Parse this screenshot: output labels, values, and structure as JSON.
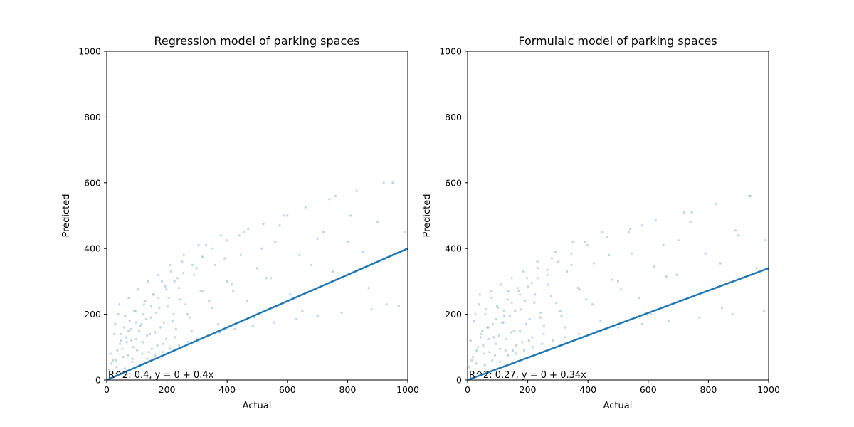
{
  "chart_data": [
    {
      "type": "scatter",
      "title": "Regression model of parking spaces",
      "xlabel": "Actual",
      "ylabel": "Predicted",
      "xlim": [
        0,
        1000
      ],
      "ylim": [
        0,
        1000
      ],
      "xticks": [
        "0",
        "200",
        "400",
        "600",
        "800",
        "1000"
      ],
      "yticks": [
        "0",
        "200",
        "400",
        "600",
        "800",
        "1000"
      ],
      "annotation": "R^2: 0.4, y = 0 + 0.4x",
      "point_color": "#1f77b4",
      "line_color": "#1f77b4",
      "fit_line": {
        "intercept": 0,
        "slope": 0.4
      },
      "series": [
        {
          "x": [
            12,
            25,
            31,
            38,
            44,
            52,
            58,
            63,
            70,
            76,
            82,
            88,
            95,
            101,
            108,
            115,
            121,
            128,
            134,
            140,
            147,
            153,
            160,
            168,
            175,
            183,
            190,
            198,
            206,
            214,
            222,
            230,
            240,
            250,
            262,
            275,
            290,
            305,
            320,
            340,
            360,
            380,
            400,
            420,
            445,
            470,
            500,
            530,
            560,
            600,
            640,
            680,
            720,
            760,
            800,
            850,
            900,
            950,
            990,
            15,
            28,
            35,
            42,
            48,
            55,
            61,
            67,
            73,
            79,
            85,
            92,
            98,
            104,
            111,
            118,
            124,
            131,
            137,
            144,
            150,
            157,
            164,
            171,
            179,
            186,
            194,
            202,
            210,
            218,
            226,
            235,
            245,
            256,
            268,
            282,
            298,
            312,
            330,
            350,
            370,
            392,
            415,
            440,
            465,
            490,
            515,
            545,
            575,
            610,
            650,
            700,
            750,
            810,
            870,
            930,
            8,
            20,
            33,
            47,
            60,
            72,
            85,
            97,
            110,
            122,
            135,
            148,
            160,
            172,
            185,
            198,
            210,
            225,
            240,
            255,
            270,
            285,
            300,
            318,
            335,
            352,
            375,
            398,
            425,
            455,
            485,
            520,
            555,
            590,
            630,
            660,
            700,
            740,
            780,
            830,
            880,
            920,
            970
          ],
          "y": [
            80,
            140,
            60,
            200,
            110,
            95,
            160,
            130,
            75,
            180,
            120,
            100,
            210,
            90,
            150,
            170,
            115,
            240,
            135,
            85,
            190,
            260,
            145,
            105,
            220,
            300,
            175,
            125,
            250,
            330,
            200,
            155,
            280,
            360,
            230,
            190,
            320,
            410,
            270,
            240,
            350,
            440,
            300,
            270,
            380,
            460,
            340,
            310,
            420,
            500,
            380,
            350,
            450,
            560,
            420,
            390,
            480,
            600,
            450,
            50,
            170,
            90,
            230,
            140,
            70,
            195,
            115,
            250,
            155,
            65,
            210,
            125,
            275,
            165,
            80,
            230,
            185,
            300,
            140,
            95,
            260,
            205,
            320,
            160,
            110,
            285,
            225,
            350,
            180,
            130,
            310,
            245,
            380,
            200,
            150,
            340,
            270,
            410,
            220,
            170,
            370,
            290,
            440,
            240,
            190,
            400,
            310,
            470,
            260,
            210,
            430,
            330,
            500,
            280,
            230,
            30,
            60,
            40,
            120,
            35,
            150,
            55,
            175,
            45,
            200,
            65,
            225,
            75,
            250,
            85,
            275,
            95,
            300,
            105,
            325,
            115,
            350,
            125,
            375,
            135,
            400,
            145,
            425,
            155,
            450,
            165,
            475,
            175,
            500,
            185,
            525,
            195,
            550,
            205,
            575,
            215,
            600,
            225
          ]
        }
      ]
    },
    {
      "type": "scatter",
      "title": "Formulaic model of parking spaces",
      "xlabel": "Actual",
      "ylabel": "Predicted",
      "xlim": [
        0,
        1000
      ],
      "ylim": [
        0,
        1000
      ],
      "xticks": [
        "0",
        "200",
        "400",
        "600",
        "800",
        "1000"
      ],
      "yticks": [
        "0",
        "200",
        "400",
        "600",
        "800",
        "1000"
      ],
      "annotation": "R^2: 0.27, y = 0 + 0.34x",
      "point_color": "#1f77b4",
      "line_color": "#1f77b4",
      "fit_line": {
        "intercept": 0,
        "slope": 0.34
      },
      "series": [
        {
          "x": [
            10,
            22,
            30,
            37,
            45,
            52,
            59,
            66,
            73,
            80,
            87,
            94,
            101,
            108,
            115,
            122,
            129,
            136,
            143,
            150,
            158,
            166,
            174,
            182,
            190,
            198,
            206,
            215,
            224,
            233,
            243,
            254,
            266,
            280,
            295,
            312,
            330,
            350,
            372,
            395,
            420,
            448,
            478,
            510,
            545,
            580,
            620,
            660,
            700,
            745,
            790,
            840,
            890,
            940,
            990,
            14,
            26,
            34,
            41,
            49,
            56,
            63,
            70,
            77,
            84,
            91,
            98,
            105,
            112,
            119,
            126,
            133,
            140,
            147,
            154,
            162,
            170,
            178,
            186,
            195,
            204,
            213,
            222,
            232,
            242,
            253,
            265,
            278,
            292,
            308,
            325,
            345,
            367,
            390,
            415,
            442,
            470,
            500,
            535,
            570,
            610,
            650,
            695,
            740,
            790,
            845,
            900,
            960,
            6,
            18,
            29,
            43,
            57,
            69,
            82,
            95,
            108,
            121,
            134,
            147,
            160,
            174,
            188,
            202,
            217,
            232,
            248,
            265,
            283,
            302,
            322,
            345,
            370,
            398,
            430,
            465,
            500,
            540,
            580,
            625,
            670,
            720,
            770,
            825,
            880,
            935,
            985
          ],
          "y": [
            120,
            180,
            90,
            230,
            140,
            105,
            200,
            160,
            85,
            250,
            130,
            110,
            220,
            95,
            175,
            195,
            125,
            270,
            145,
            90,
            210,
            280,
            150,
            115,
            240,
            310,
            185,
            130,
            260,
            340,
            205,
            165,
            290,
            370,
            235,
            195,
            330,
            420,
            275,
            245,
            355,
            450,
            305,
            275,
            385,
            470,
            345,
            315,
            425,
            510,
            385,
            355,
            455,
            560,
            425,
            60,
            200,
            100,
            260,
            150,
            80,
            215,
            125,
            270,
            170,
            75,
            225,
            135,
            290,
            175,
            90,
            245,
            195,
            310,
            150,
            105,
            270,
            215,
            330,
            170,
            120,
            295,
            235,
            360,
            190,
            140,
            320,
            255,
            390,
            210,
            160,
            350,
            280,
            420,
            230,
            180,
            380,
            300,
            450,
            250,
            200,
            410,
            320,
            480,
            270,
            220,
            440,
            340,
            40,
            70,
            50,
            130,
            45,
            160,
            60,
            185,
            55,
            210,
            75,
            235,
            80,
            260,
            90,
            285,
            100,
            310,
            110,
            335,
            120,
            360,
            130,
            385,
            140,
            410,
            150,
            435,
            160,
            460,
            170,
            485,
            180,
            510,
            190,
            535,
            200,
            560,
            210
          ]
        }
      ]
    }
  ]
}
